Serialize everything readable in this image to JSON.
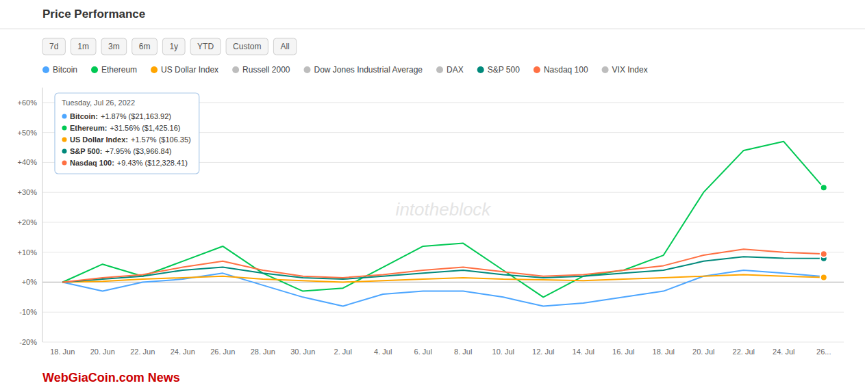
{
  "chart_data": {
    "type": "line",
    "title": "Price Performance",
    "categories": [
      "18. Jun",
      "20. Jun",
      "22. Jun",
      "24. Jun",
      "26. Jun",
      "28. Jun",
      "30. Jun",
      "2. Jul",
      "4. Jul",
      "6. Jul",
      "8. Jul",
      "10. Jul",
      "12. Jul",
      "14. Jul",
      "16. Jul",
      "18. Jul",
      "20. Jul",
      "22. Jul",
      "24. Jul",
      "26..."
    ],
    "series": [
      {
        "name": "Bitcoin",
        "color": "#4da6ff",
        "values": [
          0,
          -3,
          0,
          1,
          3,
          -1,
          -5,
          -8,
          -4,
          -3,
          -3,
          -5,
          -8,
          -7,
          -5,
          -3,
          2,
          4,
          3,
          1.87
        ]
      },
      {
        "name": "Ethereum",
        "color": "#00c853",
        "values": [
          0,
          6,
          2,
          7,
          12,
          3,
          -3,
          -2,
          5,
          12,
          13,
          4,
          -5,
          2,
          4,
          9,
          30,
          44,
          47,
          31.56
        ]
      },
      {
        "name": "US Dollar Index",
        "color": "#ffa500",
        "values": [
          0,
          0.3,
          1,
          1.5,
          2,
          1,
          0.5,
          0,
          0.5,
          1,
          1.5,
          1,
          0.8,
          0.5,
          1,
          1.5,
          2,
          2.5,
          2,
          1.57
        ]
      },
      {
        "name": "Russell 2000",
        "color": "#bdbdbd",
        "values": [
          null,
          null,
          null,
          null,
          null,
          null,
          null,
          null,
          null,
          null,
          null,
          null,
          null,
          null,
          null,
          null,
          null,
          null,
          null,
          null
        ]
      },
      {
        "name": "Dow Jones Industrial Average",
        "color": "#bdbdbd",
        "values": [
          null,
          null,
          null,
          null,
          null,
          null,
          null,
          null,
          null,
          null,
          null,
          null,
          null,
          null,
          null,
          null,
          null,
          null,
          null,
          null
        ]
      },
      {
        "name": "DAX",
        "color": "#bdbdbd",
        "values": [
          null,
          null,
          null,
          null,
          null,
          null,
          null,
          null,
          null,
          null,
          null,
          null,
          null,
          null,
          null,
          null,
          null,
          null,
          null,
          null
        ]
      },
      {
        "name": "S&P 500",
        "color": "#00897b",
        "values": [
          0,
          1,
          2,
          4,
          5,
          3,
          1.5,
          1,
          2,
          3,
          4,
          2.5,
          1.5,
          2,
          3,
          4,
          7,
          8.5,
          8,
          7.95
        ]
      },
      {
        "name": "Nasdaq 100",
        "color": "#ff7043",
        "values": [
          0,
          1.5,
          2.5,
          5,
          7,
          4,
          2,
          1.5,
          2.5,
          4,
          5,
          3.5,
          2,
          2.5,
          4,
          5.5,
          9,
          11,
          10,
          9.43
        ]
      },
      {
        "name": "VIX Index",
        "color": "#bdbdbd",
        "values": [
          null,
          null,
          null,
          null,
          null,
          null,
          null,
          null,
          null,
          null,
          null,
          null,
          null,
          null,
          null,
          null,
          null,
          null,
          null,
          null
        ]
      }
    ],
    "ylim": [
      -20,
      65
    ],
    "yticks": [
      {
        "value": -20,
        "label": "-20%"
      },
      {
        "value": -10,
        "label": "-10%"
      },
      {
        "value": 0,
        "label": "+0%"
      },
      {
        "value": 10,
        "label": "+10%"
      },
      {
        "value": 20,
        "label": "+20%"
      },
      {
        "value": 30,
        "label": "+30%"
      },
      {
        "value": 40,
        "label": "+40%"
      },
      {
        "value": 50,
        "label": "+50%"
      },
      {
        "value": 60,
        "label": "+60%"
      }
    ],
    "grid": true,
    "annotations": {
      "tabs": [
        "7d",
        "1m",
        "3m",
        "6m",
        "1y",
        "YTD",
        "Custom",
        "All"
      ],
      "watermark": {
        "text": "intotheblock",
        "color": "#d8d8d8"
      },
      "tooltip": {
        "title": "Tuesday, Jul 26, 2022",
        "items": [
          {
            "label": "Bitcoin:",
            "value": "+1.87% ($21,163.92)",
            "color": "#4da6ff"
          },
          {
            "label": "Ethereum:",
            "value": "+31.56% ($1,425.16)",
            "color": "#00c853"
          },
          {
            "label": "US Dollar Index:",
            "value": "+1.57% ($106.35)",
            "color": "#ffa500"
          },
          {
            "label": "S&P 500:",
            "value": "+7.95% ($3,966.84)",
            "color": "#00897b"
          },
          {
            "label": "Nasdaq 100:",
            "value": "+9.43% ($12,328.41)",
            "color": "#ff7043"
          }
        ]
      },
      "footer": {
        "text": "WebGiaCoin.com News",
        "color": "#cc0000"
      }
    }
  }
}
